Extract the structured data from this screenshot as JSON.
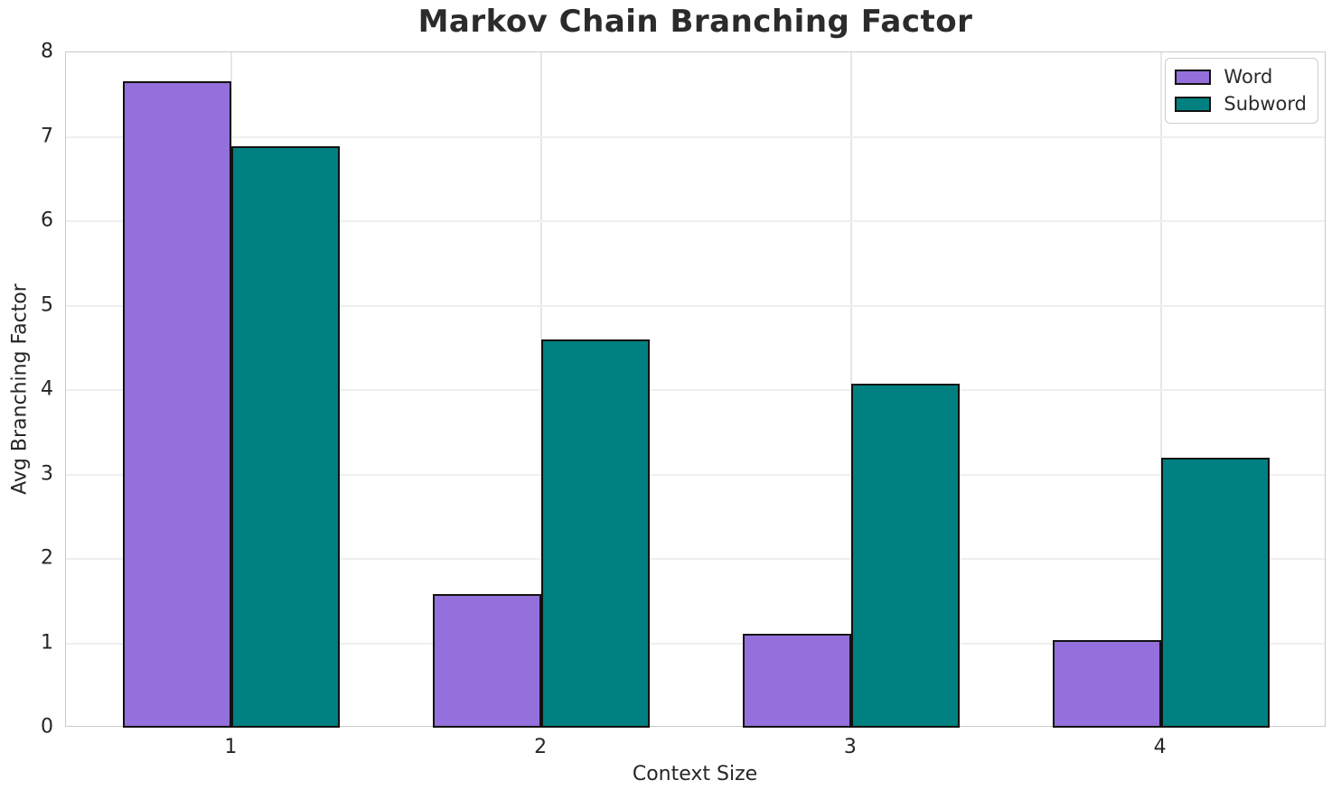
{
  "chart_data": {
    "type": "bar",
    "title": "Markov Chain Branching Factor",
    "xlabel": "Context Size",
    "ylabel": "Avg Branching Factor",
    "categories": [
      "1",
      "2",
      "3",
      "4"
    ],
    "x": [
      1,
      2,
      3,
      4
    ],
    "series": [
      {
        "name": "Word",
        "color": "#9370DB",
        "values": [
          7.66,
          1.58,
          1.11,
          1.04
        ]
      },
      {
        "name": "Subword",
        "color": "#008080",
        "values": [
          6.89,
          4.6,
          4.08,
          3.2
        ]
      }
    ],
    "bar_width": 0.35,
    "bar_edge_color": "#111111",
    "xlim": [
      0.465,
      4.535
    ],
    "ylim": [
      0,
      8
    ],
    "yticks": [
      0,
      1,
      2,
      3,
      4,
      5,
      6,
      7,
      8
    ],
    "grid": true,
    "legend_position": "upper right"
  }
}
